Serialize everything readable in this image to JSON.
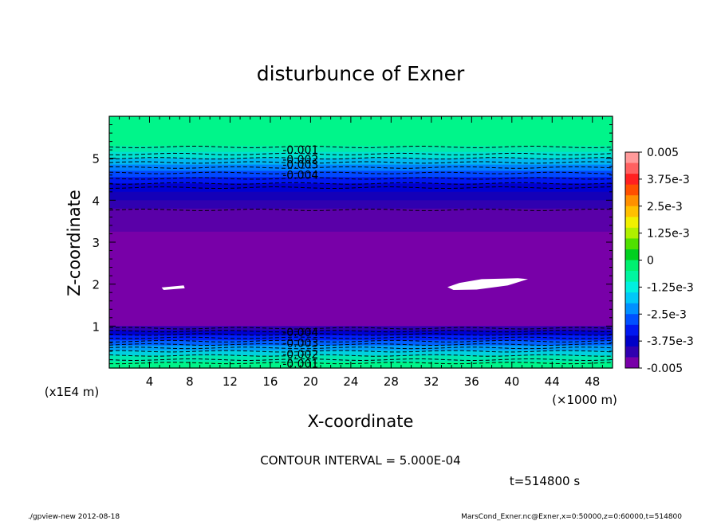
{
  "title": "disturbunce of Exner",
  "chart_data": {
    "type": "heatmap",
    "title": "disturbunce of Exner",
    "xlabel": "X-coordinate",
    "ylabel": "Z-coordinate",
    "x_unit": "(×1000 m)",
    "y_unit": "(x1E4 m)",
    "xlim": [
      0,
      50
    ],
    "ylim": [
      0,
      6
    ],
    "x_ticks": [
      4,
      8,
      12,
      16,
      20,
      24,
      28,
      32,
      36,
      40,
      44,
      48
    ],
    "y_ticks": [
      1,
      2,
      3,
      4,
      5
    ],
    "bands": [
      {
        "z0": 5.3,
        "z1": 6.0,
        "color": "#00f58a"
      },
      {
        "z0": 5.15,
        "z1": 5.3,
        "color": "#00eaa8"
      },
      {
        "z0": 5.0,
        "z1": 5.15,
        "color": "#00e0d0"
      },
      {
        "z0": 4.85,
        "z1": 5.0,
        "color": "#00b8f0"
      },
      {
        "z0": 4.7,
        "z1": 4.85,
        "color": "#0080ff"
      },
      {
        "z0": 4.55,
        "z1": 4.7,
        "color": "#0048ff"
      },
      {
        "z0": 4.4,
        "z1": 4.55,
        "color": "#0018f0"
      },
      {
        "z0": 4.2,
        "z1": 4.4,
        "color": "#0000d0"
      },
      {
        "z0": 4.0,
        "z1": 4.2,
        "color": "#1400b8"
      },
      {
        "z0": 3.8,
        "z1": 4.0,
        "color": "#3000b0"
      },
      {
        "z0": 3.25,
        "z1": 3.8,
        "color": "#5a00a8"
      },
      {
        "z0": 1.0,
        "z1": 3.25,
        "color": "#7800a8"
      },
      {
        "z0": 0.9,
        "z1": 1.0,
        "color": "#3000b0"
      },
      {
        "z0": 0.78,
        "z1": 0.9,
        "color": "#0000d0"
      },
      {
        "z0": 0.66,
        "z1": 0.78,
        "color": "#0020f8"
      },
      {
        "z0": 0.54,
        "z1": 0.66,
        "color": "#0060ff"
      },
      {
        "z0": 0.42,
        "z1": 0.54,
        "color": "#00a0f8"
      },
      {
        "z0": 0.3,
        "z1": 0.42,
        "color": "#00d0e0"
      },
      {
        "z0": 0.15,
        "z1": 0.3,
        "color": "#00e8b0"
      },
      {
        "z0": 0.0,
        "z1": 0.15,
        "color": "#00f58a"
      }
    ],
    "contour_lines_z": [
      5.27,
      5.1,
      5.0,
      4.9,
      4.78,
      4.65,
      4.52,
      4.4,
      4.3,
      3.77,
      0.95,
      0.88,
      0.8,
      0.72,
      0.64,
      0.56,
      0.48,
      0.4,
      0.3,
      0.2,
      0.12
    ],
    "contour_labels": [
      {
        "text": "-0.001",
        "x": 19.0,
        "z": 5.2
      },
      {
        "text": "-0.002",
        "x": 19.0,
        "z": 4.97
      },
      {
        "text": "-0.003",
        "x": 19.0,
        "z": 4.85
      },
      {
        "text": "-0.004",
        "x": 19.0,
        "z": 4.6
      },
      {
        "text": "-0.004",
        "x": 19.0,
        "z": 0.85
      },
      {
        "text": "-0.003",
        "x": 19.0,
        "z": 0.6
      },
      {
        "text": "-0.002",
        "x": 19.0,
        "z": 0.33
      },
      {
        "text": "-0.001",
        "x": 19.0,
        "z": 0.1
      }
    ],
    "legend": {
      "ticks": [
        "0.005",
        "3.75e-3",
        "2.5e-3",
        "1.25e-3",
        "0",
        "-1.25e-3",
        "-2.5e-3",
        "-3.75e-3",
        "-0.005"
      ],
      "colors": [
        "#ff9a9a",
        "#ff6060",
        "#ff2020",
        "#ff5000",
        "#ff9000",
        "#ffc000",
        "#f0f000",
        "#b0f000",
        "#50e000",
        "#00d020",
        "#00f070",
        "#00f5a0",
        "#00f0e0",
        "#00c8f8",
        "#0090ff",
        "#0050ff",
        "#0018f0",
        "#0000c8",
        "#3000b0",
        "#7800a8"
      ],
      "placement": "right"
    }
  },
  "contour_interval_text": "CONTOUR INTERVAL = 5.000E-04",
  "time_text": "t=514800 s",
  "footer_left": "./gpview-new  2012-08-18",
  "footer_right": "MarsCond_Exner.nc@Exner,x=0:50000,z=0:60000,t=514800"
}
